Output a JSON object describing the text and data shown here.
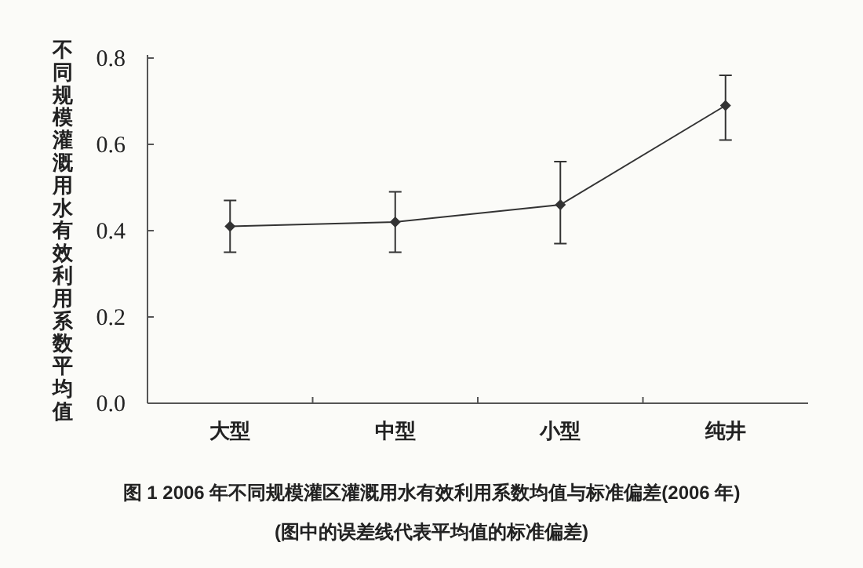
{
  "chart_data": {
    "type": "line",
    "title": "图 1  2006 年不同规模灌区灌溉用水有效利用系数均值与标准偏差(2006 年)",
    "subtitle": "(图中的误差线代表平均值的标准偏差)",
    "ylabel": "不同规模灌溉用水有效利用系数平均值",
    "categories": [
      "大型",
      "中型",
      "小型",
      "纯井"
    ],
    "series": [
      {
        "color": "#333333",
        "values": [
          0.41,
          0.42,
          0.46,
          0.69
        ],
        "errors": [
          [
            0.35,
            0.47
          ],
          [
            0.35,
            0.49
          ],
          [
            0.37,
            0.56
          ],
          [
            0.61,
            0.76
          ]
        ]
      }
    ],
    "ylim": [
      0,
      0.8
    ],
    "yticks": [
      {
        "value": 0,
        "label": "0.0"
      },
      0.2,
      0.4,
      0.6,
      0.8
    ],
    "marker": "diamond",
    "line_style": "solid",
    "grid": false
  }
}
